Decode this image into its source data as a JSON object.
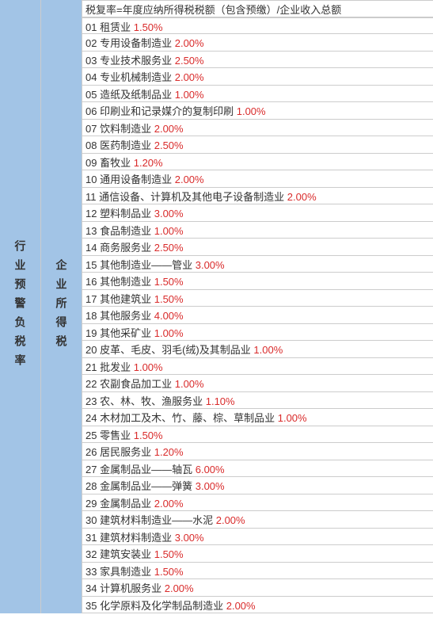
{
  "colors": {
    "left_bg": "#a2c4e6",
    "rate_color": "#d92b2b",
    "text_color": "#333",
    "border_color": "#ccc"
  },
  "left_label": "行业预警负税率",
  "mid_label": "企业所得税",
  "header": "税复率=年度应纳所得税税额（包含预缴）/企业收入总额",
  "rows": [
    {
      "num": "01",
      "name": "租赁业",
      "rate": "1.50%"
    },
    {
      "num": "02",
      "name": "专用设备制造业",
      "rate": "2.00%"
    },
    {
      "num": "03",
      "name": "专业技术服务业",
      "rate": "2.50%"
    },
    {
      "num": "04",
      "name": "专业机械制造业",
      "rate": "2.00%"
    },
    {
      "num": "05",
      "name": "造纸及纸制品业",
      "rate": "1.00%"
    },
    {
      "num": "06",
      "name": "印刷业和记录媒介的复制印刷",
      "rate": "1.00%"
    },
    {
      "num": "07",
      "name": "饮料制造业",
      "rate": "2.00%"
    },
    {
      "num": "08",
      "name": "医药制造业",
      "rate": "2.50%"
    },
    {
      "num": "09",
      "name": "畜牧业",
      "rate": "1.20%"
    },
    {
      "num": "10",
      "name": "通用设备制造业",
      "rate": "2.00%"
    },
    {
      "num": "11",
      "name": "通信设备、计算机及其他电子设备制造业",
      "rate": "2.00%"
    },
    {
      "num": "12",
      "name": "塑料制品业",
      "rate": "3.00%"
    },
    {
      "num": "13",
      "name": "食品制造业",
      "rate": "1.00%"
    },
    {
      "num": "14",
      "name": "商务服务业",
      "rate": "2.50%"
    },
    {
      "num": "15",
      "name": "其他制造业——管业",
      "rate": "3.00%"
    },
    {
      "num": "16",
      "name": "其他制造业",
      "rate": "1.50%"
    },
    {
      "num": "17",
      "name": "其他建筑业",
      "rate": "1.50%"
    },
    {
      "num": "18",
      "name": "其他服务业",
      "rate": "4.00%"
    },
    {
      "num": "19",
      "name": "其他采矿业",
      "rate": "1.00%"
    },
    {
      "num": "20",
      "name": "皮革、毛皮、羽毛(绒)及其制品业",
      "rate": "1.00%"
    },
    {
      "num": "21",
      "name": "批发业",
      "rate": "1.00%"
    },
    {
      "num": "22",
      "name": "农副食品加工业",
      "rate": "1.00%"
    },
    {
      "num": "23",
      "name": "农、林、牧、渔服务业",
      "rate": "1.10%"
    },
    {
      "num": "24",
      "name": "木材加工及木、竹、藤、棕、草制品业",
      "rate": "1.00%"
    },
    {
      "num": "25",
      "name": "零售业",
      "rate": "1.50%"
    },
    {
      "num": "26",
      "name": "居民服务业",
      "rate": "1.20%"
    },
    {
      "num": "27",
      "name": "金属制品业——轴瓦",
      "rate": "6.00%"
    },
    {
      "num": "28",
      "name": "金属制品业——弹簧",
      "rate": "3.00%"
    },
    {
      "num": "29",
      "name": "金属制品业",
      "rate": "2.00%"
    },
    {
      "num": "30",
      "name": "建筑材料制造业——水泥",
      "rate": "2.00%"
    },
    {
      "num": "31",
      "name": "建筑材料制造业",
      "rate": "3.00%"
    },
    {
      "num": "32",
      "name": "建筑安装业",
      "rate": "1.50%"
    },
    {
      "num": "33",
      "name": "家具制造业",
      "rate": "1.50%"
    },
    {
      "num": "34",
      "name": "计算机服务业",
      "rate": "2.00%"
    },
    {
      "num": "35",
      "name": "化学原料及化学制品制造业",
      "rate": "2.00%"
    }
  ]
}
